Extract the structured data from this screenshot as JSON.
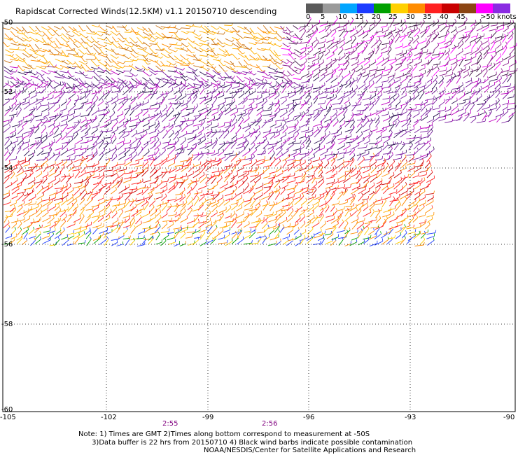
{
  "title": "Rapidscat Corrected Winds(12.5KM) v1.1 20150710 descending",
  "colorbar": {
    "labels": [
      "0",
      "5",
      "10",
      "15",
      "20",
      "25",
      "30",
      "35",
      "40",
      "45",
      ">50 knots"
    ],
    "colors": [
      "#5a5a5a",
      "#9a9a9a",
      "#00a5ff",
      "#1c3cff",
      "#00a000",
      "#ffd000",
      "#ff8c00",
      "#ff2020",
      "#c80000",
      "#8b4513",
      "#ff00ff",
      "#8a2be2"
    ]
  },
  "axes": {
    "lat_labels": [
      "-50",
      "-52",
      "-54",
      "-56",
      "-58",
      "-60"
    ],
    "lon_labels": [
      "-105",
      "-102",
      "-99",
      "-96",
      "-93",
      "-90"
    ],
    "lon_range": [
      -105,
      -90
    ],
    "lat_range": [
      -50,
      -60
    ],
    "grid": "dotted"
  },
  "times": [
    {
      "label": "2:55",
      "lon": -100.1
    },
    {
      "label": "2:56",
      "lon": -97.2
    }
  ],
  "notes": {
    "line1": "Note: 1) Times are GMT 2)Times along bottom correspond to measurement at -50S",
    "line2": "      3)Data buffer is 22 hrs from 20150710 4) Black wind barbs indicate possible contamination"
  },
  "credit": "NOAA/NESDIS/Center for Satellite Applications and Research"
}
